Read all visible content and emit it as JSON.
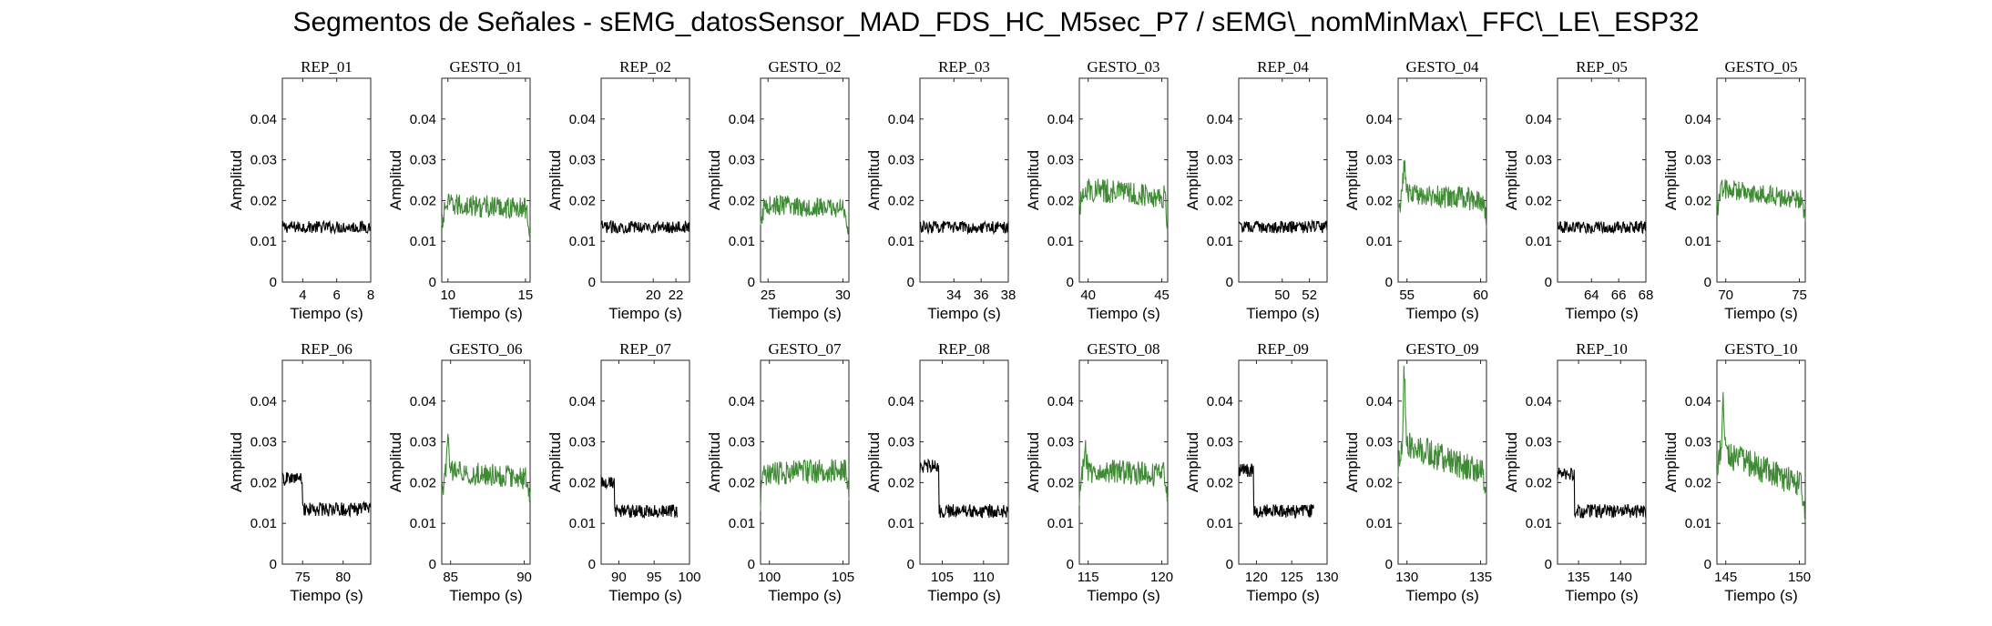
{
  "figure": {
    "title": "Segmentos de Señales - sEMG_datosSensor_MAD_FDS_HC_M5sec_P7 / sEMG\\_nomMinMax\\_FFC\\_LE\\_ESP32"
  },
  "colors": {
    "rep": "#000000",
    "gesto": "#3f8a34",
    "axis": "#262626"
  },
  "chart_data": [
    {
      "type": "line",
      "title": "REP_01",
      "color": "black",
      "xlabel": "Tiempo (s)",
      "ylabel": "Amplitud",
      "xlim": [
        2.8,
        8
      ],
      "ylim": [
        0,
        0.05
      ],
      "xticks": [
        4,
        6,
        8
      ],
      "yticks": [
        0,
        0.01,
        0.02,
        0.03,
        0.04
      ],
      "ytick_labels": [
        "0",
        "0.01",
        "0.02",
        "0.03",
        "0.04"
      ],
      "series": [
        {
          "x": [
            2.8,
            8
          ],
          "level": [
            0.0135,
            0.0135
          ],
          "noise": 0.0015,
          "spike": 0,
          "drop": 0
        }
      ]
    },
    {
      "type": "line",
      "title": "GESTO_01",
      "color": "green",
      "xlabel": "Tiempo (s)",
      "ylabel": "Amplitud",
      "xlim": [
        9.6,
        15.3
      ],
      "ylim": [
        0,
        0.05
      ],
      "xticks": [
        10,
        15
      ],
      "yticks": [
        0,
        0.01,
        0.02,
        0.03,
        0.04
      ],
      "ytick_labels": [
        "0",
        "0.01",
        "0.02",
        "0.03",
        "0.04"
      ],
      "series": [
        {
          "x": [
            9.6,
            15.3
          ],
          "level": [
            0.019,
            0.018
          ],
          "noise": 0.0028,
          "spike": 0,
          "drop": 1
        }
      ]
    },
    {
      "type": "line",
      "title": "REP_02",
      "color": "black",
      "xlabel": "Tiempo (s)",
      "ylabel": "Amplitud",
      "xlim": [
        15.4,
        23.2
      ],
      "ylim": [
        0,
        0.05
      ],
      "xticks": [
        20,
        22
      ],
      "yticks": [
        0,
        0.01,
        0.02,
        0.03,
        0.04
      ],
      "ytick_labels": [
        "0",
        "0.01",
        "0.02",
        "0.03",
        "0.04"
      ],
      "series": [
        {
          "x": [
            15.4,
            23.2
          ],
          "level": [
            0.0135,
            0.0135
          ],
          "noise": 0.0015,
          "spike": 0,
          "drop": 0
        }
      ]
    },
    {
      "type": "line",
      "title": "GESTO_02",
      "color": "green",
      "xlabel": "Tiempo (s)",
      "ylabel": "Amplitud",
      "xlim": [
        24.5,
        30.4
      ],
      "ylim": [
        0,
        0.05
      ],
      "xticks": [
        25,
        30
      ],
      "yticks": [
        0,
        0.01,
        0.02,
        0.03,
        0.04
      ],
      "ytick_labels": [
        "0",
        "0.01",
        "0.02",
        "0.03",
        "0.04"
      ],
      "series": [
        {
          "x": [
            24.5,
            30.4
          ],
          "level": [
            0.019,
            0.018
          ],
          "noise": 0.0025,
          "spike": 0,
          "drop": 1
        }
      ]
    },
    {
      "type": "line",
      "title": "REP_03",
      "color": "black",
      "xlabel": "Tiempo (s)",
      "ylabel": "Amplitud",
      "xlim": [
        31.5,
        38
      ],
      "ylim": [
        0,
        0.05
      ],
      "xticks": [
        34,
        36,
        38
      ],
      "yticks": [
        0,
        0.01,
        0.02,
        0.03,
        0.04
      ],
      "ytick_labels": [
        "0",
        "0.01",
        "0.02",
        "0.03",
        "0.04"
      ],
      "series": [
        {
          "x": [
            31.5,
            38
          ],
          "level": [
            0.0135,
            0.0135
          ],
          "noise": 0.0015,
          "spike": 0,
          "drop": 0
        }
      ]
    },
    {
      "type": "line",
      "title": "GESTO_03",
      "color": "green",
      "xlabel": "Tiempo (s)",
      "ylabel": "Amplitud",
      "xlim": [
        39.4,
        45.4
      ],
      "ylim": [
        0,
        0.05
      ],
      "xticks": [
        40,
        45
      ],
      "yticks": [
        0,
        0.01,
        0.02,
        0.03,
        0.04
      ],
      "ytick_labels": [
        "0",
        "0.01",
        "0.02",
        "0.03",
        "0.04"
      ],
      "series": [
        {
          "x": [
            39.4,
            45.4
          ],
          "level": [
            0.023,
            0.021
          ],
          "noise": 0.003,
          "spike": 0,
          "drop": 1
        }
      ]
    },
    {
      "type": "line",
      "title": "REP_04",
      "color": "black",
      "xlabel": "Tiempo (s)",
      "ylabel": "Amplitud",
      "xlim": [
        46.8,
        53.3
      ],
      "ylim": [
        0,
        0.05
      ],
      "xticks": [
        50,
        52
      ],
      "yticks": [
        0,
        0.01,
        0.02,
        0.03,
        0.04
      ],
      "ytick_labels": [
        "0",
        "0.01",
        "0.02",
        "0.03",
        "0.04"
      ],
      "series": [
        {
          "x": [
            46.8,
            53.3
          ],
          "level": [
            0.0135,
            0.0135
          ],
          "noise": 0.0015,
          "spike": 0,
          "drop": 0
        }
      ]
    },
    {
      "type": "line",
      "title": "GESTO_04",
      "color": "green",
      "xlabel": "Tiempo (s)",
      "ylabel": "Amplitud",
      "xlim": [
        54.4,
        60.4
      ],
      "ylim": [
        0,
        0.05
      ],
      "xticks": [
        55,
        60
      ],
      "yticks": [
        0,
        0.01,
        0.02,
        0.03,
        0.04
      ],
      "ytick_labels": [
        "0",
        "0.01",
        "0.02",
        "0.03",
        "0.04"
      ],
      "series": [
        {
          "x": [
            54.4,
            60.4
          ],
          "level": [
            0.022,
            0.02
          ],
          "noise": 0.0028,
          "spike": 0.008,
          "drop": 1
        }
      ]
    },
    {
      "type": "line",
      "title": "REP_05",
      "color": "black",
      "xlabel": "Tiempo (s)",
      "ylabel": "Amplitud",
      "xlim": [
        61.5,
        68
      ],
      "ylim": [
        0,
        0.05
      ],
      "xticks": [
        64,
        66,
        68
      ],
      "yticks": [
        0,
        0.01,
        0.02,
        0.03,
        0.04
      ],
      "ytick_labels": [
        "0",
        "0.01",
        "0.02",
        "0.03",
        "0.04"
      ],
      "series": [
        {
          "x": [
            61.5,
            68
          ],
          "level": [
            0.0135,
            0.0135
          ],
          "noise": 0.0015,
          "spike": 0,
          "drop": 0
        }
      ]
    },
    {
      "type": "line",
      "title": "GESTO_05",
      "color": "green",
      "xlabel": "Tiempo (s)",
      "ylabel": "Amplitud",
      "xlim": [
        69.4,
        75.4
      ],
      "ylim": [
        0,
        0.05
      ],
      "xticks": [
        70,
        75
      ],
      "yticks": [
        0,
        0.01,
        0.02,
        0.03,
        0.04
      ],
      "ytick_labels": [
        "0",
        "0.01",
        "0.02",
        "0.03",
        "0.04"
      ],
      "series": [
        {
          "x": [
            69.4,
            75.4
          ],
          "level": [
            0.023,
            0.02
          ],
          "noise": 0.0025,
          "spike": 0,
          "drop": 1
        }
      ]
    },
    {
      "type": "line",
      "title": "REP_06",
      "color": "black",
      "xlabel": "Tiempo (s)",
      "ylabel": "Amplitud",
      "xlim": [
        72.5,
        83.4
      ],
      "ylim": [
        0,
        0.05
      ],
      "xticks": [
        75,
        80
      ],
      "yticks": [
        0,
        0.01,
        0.02,
        0.03,
        0.04
      ],
      "ytick_labels": [
        "0",
        "0.01",
        "0.02",
        "0.03",
        "0.04"
      ],
      "series": [
        {
          "x": [
            72.5,
            83.4
          ],
          "level": [
            0.0135,
            0.0135
          ],
          "noise": 0.0017,
          "step_end": 75,
          "step_level": 0.021,
          "spike": 0,
          "drop": 0
        }
      ]
    },
    {
      "type": "line",
      "title": "GESTO_06",
      "color": "green",
      "xlabel": "Tiempo (s)",
      "ylabel": "Amplitud",
      "xlim": [
        84.4,
        90.4
      ],
      "ylim": [
        0,
        0.05
      ],
      "xticks": [
        85,
        90
      ],
      "yticks": [
        0,
        0.01,
        0.02,
        0.03,
        0.04
      ],
      "ytick_labels": [
        "0",
        "0.01",
        "0.02",
        "0.03",
        "0.04"
      ],
      "series": [
        {
          "x": [
            84.4,
            90.4
          ],
          "level": [
            0.023,
            0.021
          ],
          "noise": 0.0028,
          "spike": 0.007,
          "drop": 1
        }
      ]
    },
    {
      "type": "line",
      "title": "REP_07",
      "color": "black",
      "xlabel": "Tiempo (s)",
      "ylabel": "Amplitud",
      "xlim": [
        87.5,
        100
      ],
      "ylim": [
        0,
        0.05
      ],
      "xticks": [
        90,
        95,
        100
      ],
      "yticks": [
        0,
        0.01,
        0.02,
        0.03,
        0.04
      ],
      "ytick_labels": [
        "0",
        "0.01",
        "0.02",
        "0.03",
        "0.04"
      ],
      "series": [
        {
          "x": [
            87.5,
            98.3
          ],
          "level": [
            0.013,
            0.013
          ],
          "noise": 0.0016,
          "step_end": 89.4,
          "step_level": 0.02,
          "spike": 0,
          "drop": 0
        }
      ]
    },
    {
      "type": "line",
      "title": "GESTO_07",
      "color": "green",
      "xlabel": "Tiempo (s)",
      "ylabel": "Amplitud",
      "xlim": [
        99.4,
        105.4
      ],
      "ylim": [
        0,
        0.05
      ],
      "xticks": [
        100,
        105
      ],
      "yticks": [
        0,
        0.01,
        0.02,
        0.03,
        0.04
      ],
      "ytick_labels": [
        "0",
        "0.01",
        "0.02",
        "0.03",
        "0.04"
      ],
      "series": [
        {
          "x": [
            99.4,
            105.4
          ],
          "level": [
            0.022,
            0.023
          ],
          "noise": 0.003,
          "spike": 0,
          "drop": 1
        }
      ]
    },
    {
      "type": "line",
      "title": "REP_08",
      "color": "black",
      "xlabel": "Tiempo (s)",
      "ylabel": "Amplitud",
      "xlim": [
        102.3,
        113
      ],
      "ylim": [
        0,
        0.05
      ],
      "xticks": [
        105,
        110
      ],
      "yticks": [
        0,
        0.01,
        0.02,
        0.03,
        0.04
      ],
      "ytick_labels": [
        "0",
        "0.01",
        "0.02",
        "0.03",
        "0.04"
      ],
      "series": [
        {
          "x": [
            102.3,
            113
          ],
          "level": [
            0.013,
            0.013
          ],
          "noise": 0.0017,
          "step_end": 104.6,
          "step_level": 0.024,
          "spike": 0,
          "drop": 0
        }
      ]
    },
    {
      "type": "line",
      "title": "GESTO_08",
      "color": "green",
      "xlabel": "Tiempo (s)",
      "ylabel": "Amplitud",
      "xlim": [
        114.4,
        120.4
      ],
      "ylim": [
        0,
        0.05
      ],
      "xticks": [
        115,
        120
      ],
      "yticks": [
        0,
        0.01,
        0.02,
        0.03,
        0.04
      ],
      "ytick_labels": [
        "0",
        "0.01",
        "0.02",
        "0.03",
        "0.04"
      ],
      "series": [
        {
          "x": [
            114.4,
            120.4
          ],
          "level": [
            0.023,
            0.022
          ],
          "noise": 0.003,
          "spike": 0.006,
          "drop": 1
        }
      ]
    },
    {
      "type": "line",
      "title": "REP_09",
      "color": "black",
      "xlabel": "Tiempo (s)",
      "ylabel": "Amplitud",
      "xlim": [
        117.5,
        130
      ],
      "ylim": [
        0,
        0.05
      ],
      "xticks": [
        120,
        125,
        130
      ],
      "yticks": [
        0,
        0.01,
        0.02,
        0.03,
        0.04
      ],
      "ytick_labels": [
        "0",
        "0.01",
        "0.02",
        "0.03",
        "0.04"
      ],
      "series": [
        {
          "x": [
            117.5,
            128.1
          ],
          "level": [
            0.013,
            0.013
          ],
          "noise": 0.0017,
          "step_end": 119.6,
          "step_level": 0.023,
          "spike": 0,
          "drop": 0
        }
      ]
    },
    {
      "type": "line",
      "title": "GESTO_09",
      "color": "green",
      "xlabel": "Tiempo (s)",
      "ylabel": "Amplitud",
      "xlim": [
        129.4,
        135.4
      ],
      "ylim": [
        0,
        0.05
      ],
      "xticks": [
        130,
        135
      ],
      "yticks": [
        0,
        0.01,
        0.02,
        0.03,
        0.04
      ],
      "ytick_labels": [
        "0",
        "0.01",
        "0.02",
        "0.03",
        "0.04"
      ],
      "series": [
        {
          "x": [
            129.4,
            135.4
          ],
          "level": [
            0.03,
            0.022
          ],
          "noise": 0.0035,
          "spike": 0.018,
          "drop": 1
        }
      ]
    },
    {
      "type": "line",
      "title": "REP_10",
      "color": "black",
      "xlabel": "Tiempo (s)",
      "ylabel": "Amplitud",
      "xlim": [
        132.5,
        143
      ],
      "ylim": [
        0,
        0.05
      ],
      "xticks": [
        135,
        140
      ],
      "yticks": [
        0,
        0.01,
        0.02,
        0.03,
        0.04
      ],
      "ytick_labels": [
        "0",
        "0.01",
        "0.02",
        "0.03",
        "0.04"
      ],
      "series": [
        {
          "x": [
            132.5,
            143
          ],
          "level": [
            0.013,
            0.013
          ],
          "noise": 0.0017,
          "step_end": 134.5,
          "step_level": 0.022,
          "spike": 0,
          "drop": 0
        }
      ]
    },
    {
      "type": "line",
      "title": "GESTO_10",
      "color": "green",
      "xlabel": "Tiempo (s)",
      "ylabel": "Amplitud",
      "xlim": [
        144.4,
        150.4
      ],
      "ylim": [
        0,
        0.05
      ],
      "xticks": [
        145,
        150
      ],
      "yticks": [
        0,
        0.01,
        0.02,
        0.03,
        0.04
      ],
      "ytick_labels": [
        "0",
        "0.01",
        "0.02",
        "0.03",
        "0.04"
      ],
      "series": [
        {
          "x": [
            144.4,
            150.4
          ],
          "level": [
            0.028,
            0.019
          ],
          "noise": 0.0035,
          "spike": 0.014,
          "drop": 1
        }
      ]
    }
  ]
}
